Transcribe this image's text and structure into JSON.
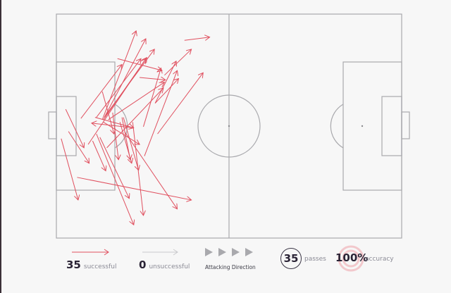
{
  "colors": {
    "successful": "#e0505f",
    "unsuccessful": "#c9c9cc",
    "pitch_lines": "#a9a9ad",
    "direction": "#a9a9ad",
    "background": "#f7f7f7"
  },
  "legend": {
    "successful_count": "35",
    "successful_label": "successful",
    "unsuccessful_count": "0",
    "unsuccessful_label": "unsuccessful",
    "direction_label": "Attacking Direction",
    "direction_icon": "triangle-right-icon",
    "passes_count": "35",
    "passes_label": "passes",
    "accuracy_value": "100%",
    "accuracy_label": "accuracy"
  },
  "chart_data": {
    "type": "pass-map",
    "pitch_scale": {
      "x": [
        0,
        100
      ],
      "y": [
        0,
        100
      ]
    },
    "attacking_direction": "left-to-right",
    "passes": [
      {
        "from": [
          37.1,
          11.7
        ],
        "to": [
          44.4,
          10.3
        ],
        "outcome": "successful"
      },
      {
        "from": [
          17.7,
          19.9
        ],
        "to": [
          30.6,
          25.2
        ],
        "outcome": "successful"
      },
      {
        "from": [
          24.1,
          28.3
        ],
        "to": [
          31.6,
          29.4
        ],
        "outcome": "successful"
      },
      {
        "from": [
          7.1,
          46.6
        ],
        "to": [
          19.0,
          22.5
        ],
        "outcome": "successful"
      },
      {
        "from": [
          13.3,
          47.2
        ],
        "to": [
          23.1,
          7.5
        ],
        "outcome": "successful"
      },
      {
        "from": [
          13.9,
          46.1
        ],
        "to": [
          25.9,
          11.0
        ],
        "outcome": "successful"
      },
      {
        "from": [
          14.3,
          45.1
        ],
        "to": [
          28.4,
          15.7
        ],
        "outcome": "successful"
      },
      {
        "from": [
          13.6,
          47.2
        ],
        "to": [
          26.2,
          19.4
        ],
        "outcome": "successful"
      },
      {
        "from": [
          11.6,
          46.1
        ],
        "to": [
          24.5,
          19.9
        ],
        "outcome": "successful"
      },
      {
        "from": [
          9.2,
          58.2
        ],
        "to": [
          25.9,
          19.9
        ],
        "outcome": "successful"
      },
      {
        "from": [
          15.0,
          47.2
        ],
        "to": [
          31.3,
          30.4
        ],
        "outcome": "successful"
      },
      {
        "from": [
          28.6,
          39.8
        ],
        "to": [
          34.7,
          21.0
        ],
        "outcome": "successful"
      },
      {
        "from": [
          29.3,
          53.5
        ],
        "to": [
          42.5,
          26.2
        ],
        "outcome": "successful"
      },
      {
        "from": [
          31.3,
          27.3
        ],
        "to": [
          39.1,
          15.7
        ],
        "outcome": "successful"
      },
      {
        "from": [
          28.6,
          39.8
        ],
        "to": [
          35.4,
          28.8
        ],
        "outcome": "successful"
      },
      {
        "from": [
          25.2,
          50.3
        ],
        "to": [
          30.3,
          24.1
        ],
        "outcome": "successful"
      },
      {
        "from": [
          25.5,
          63.4
        ],
        "to": [
          35.0,
          25.2
        ],
        "outcome": "successful"
      },
      {
        "from": [
          14.6,
          59.7
        ],
        "to": [
          31.0,
          33.0
        ],
        "outcome": "successful"
      },
      {
        "from": [
          11.2,
          46.1
        ],
        "to": [
          22.4,
          50.8
        ],
        "outcome": "successful"
      },
      {
        "from": [
          22.4,
          50.8
        ],
        "to": [
          10.2,
          48.7
        ],
        "outcome": "successful"
      },
      {
        "from": [
          13.6,
          48.2
        ],
        "to": [
          24.1,
          58.2
        ],
        "outcome": "successful"
      },
      {
        "from": [
          2.7,
          42.5
        ],
        "to": [
          8.0,
          59.7
        ],
        "outcome": "successful"
      },
      {
        "from": [
          3.5,
          52.4
        ],
        "to": [
          9.5,
          66.6
        ],
        "outcome": "successful"
      },
      {
        "from": [
          1.4,
          55.6
        ],
        "to": [
          6.3,
          83.0
        ],
        "outcome": "successful"
      },
      {
        "from": [
          6.0,
          72.9
        ],
        "to": [
          39.1,
          83.0
        ],
        "outcome": "successful"
      },
      {
        "from": [
          10.5,
          56.6
        ],
        "to": [
          14.3,
          70.0
        ],
        "outcome": "successful"
      },
      {
        "from": [
          12.6,
          55.0
        ],
        "to": [
          21.1,
          82.3
        ],
        "outcome": "successful"
      },
      {
        "from": [
          11.6,
          53.5
        ],
        "to": [
          22.4,
          94.1
        ],
        "outcome": "successful"
      },
      {
        "from": [
          19.0,
          46.1
        ],
        "to": [
          21.4,
          65.0
        ],
        "outcome": "successful"
      },
      {
        "from": [
          16.3,
          44.0
        ],
        "to": [
          18.0,
          65.0
        ],
        "outcome": "successful"
      },
      {
        "from": [
          22.1,
          48.2
        ],
        "to": [
          25.2,
          89.9
        ],
        "outcome": "successful"
      },
      {
        "from": [
          19.7,
          52.4
        ],
        "to": [
          35.0,
          87.0
        ],
        "outcome": "successful"
      },
      {
        "from": [
          13.3,
          34.6
        ],
        "to": [
          16.7,
          53.5
        ],
        "outcome": "successful"
      },
      {
        "from": [
          19.4,
          46.1
        ],
        "to": [
          23.8,
          69.7
        ],
        "outcome": "successful"
      },
      {
        "from": [
          18.4,
          48.2
        ],
        "to": [
          21.8,
          66.6
        ],
        "outcome": "successful"
      }
    ]
  }
}
